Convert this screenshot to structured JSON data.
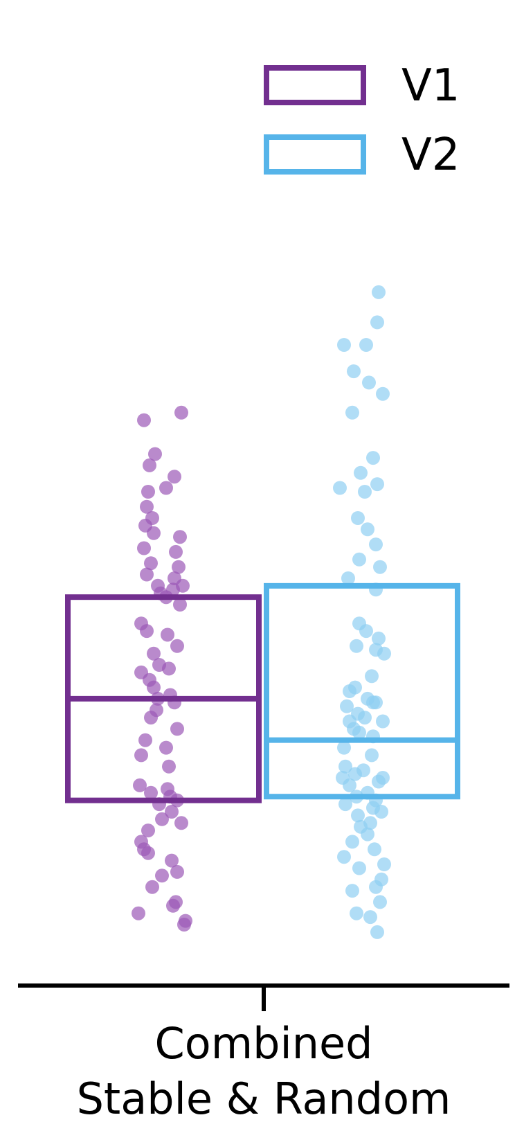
{
  "chart_data": {
    "type": "box",
    "title": "",
    "xlabel": "",
    "ylabel": "",
    "categories": [
      "Combined\nStable & Random"
    ],
    "category_lines": [
      "Combined",
      "Stable & Random"
    ],
    "ylim": [
      0,
      100
    ],
    "legend": {
      "placement": "top-right"
    },
    "series": [
      {
        "name": "V1",
        "color": "#722f8f",
        "point_color": "#9b59b6",
        "box": {
          "q1": 16.5,
          "median": 30.0,
          "q3": 43.5
        },
        "points": [
          [
            -0.14,
            67.0
          ],
          [
            0.13,
            68.0
          ],
          [
            -0.06,
            62.5
          ],
          [
            -0.1,
            61.0
          ],
          [
            0.08,
            59.5
          ],
          [
            0.02,
            58.0
          ],
          [
            -0.11,
            57.5
          ],
          [
            -0.12,
            55.5
          ],
          [
            -0.08,
            54.0
          ],
          [
            -0.13,
            53.0
          ],
          [
            -0.07,
            52.0
          ],
          [
            0.12,
            51.5
          ],
          [
            -0.14,
            50.0
          ],
          [
            0.09,
            49.5
          ],
          [
            -0.09,
            48.0
          ],
          [
            0.11,
            47.5
          ],
          [
            -0.12,
            46.5
          ],
          [
            0.08,
            46.0
          ],
          [
            -0.04,
            45.0
          ],
          [
            0.14,
            45.0
          ],
          [
            0.07,
            44.5
          ],
          [
            -0.02,
            44.0
          ],
          [
            0.02,
            43.5
          ],
          [
            0.12,
            42.5
          ],
          [
            -0.16,
            40.0
          ],
          [
            -0.12,
            39.0
          ],
          [
            0.03,
            38.5
          ],
          [
            0.1,
            37.0
          ],
          [
            -0.07,
            36.0
          ],
          [
            -0.03,
            34.5
          ],
          [
            0.04,
            34.0
          ],
          [
            -0.16,
            33.5
          ],
          [
            -0.1,
            32.5
          ],
          [
            -0.07,
            31.5
          ],
          [
            0.05,
            30.5
          ],
          [
            -0.04,
            30.0
          ],
          [
            0.08,
            29.5
          ],
          [
            -0.05,
            28.5
          ],
          [
            -0.09,
            27.5
          ],
          [
            0.1,
            26.0
          ],
          [
            -0.13,
            24.5
          ],
          [
            0.02,
            23.5
          ],
          [
            -0.16,
            22.5
          ],
          [
            0.04,
            21.0
          ],
          [
            -0.17,
            18.5
          ],
          [
            0.03,
            18.0
          ],
          [
            -0.09,
            17.5
          ],
          [
            0.05,
            17.0
          ],
          [
            0.1,
            16.5
          ],
          [
            -0.03,
            16.0
          ],
          [
            0.06,
            15.0
          ],
          [
            -0.01,
            14.0
          ],
          [
            0.13,
            13.5
          ],
          [
            -0.11,
            12.5
          ],
          [
            -0.16,
            11.0
          ],
          [
            -0.14,
            10.0
          ],
          [
            -0.11,
            9.5
          ],
          [
            0.06,
            8.5
          ],
          [
            0.1,
            7.0
          ],
          [
            -0.01,
            6.5
          ],
          [
            -0.08,
            5.0
          ],
          [
            0.09,
            3.0
          ],
          [
            0.07,
            2.5
          ],
          [
            -0.18,
            1.5
          ],
          [
            0.16,
            0.5
          ],
          [
            0.15,
            0.0
          ]
        ]
      },
      {
        "name": "V2",
        "color": "#56b4e9",
        "point_color": "#8ecff2",
        "box": {
          "q1": 17.0,
          "median": 24.5,
          "q3": 45.0
        },
        "points": [
          [
            0.12,
            84.0
          ],
          [
            0.11,
            80.0
          ],
          [
            -0.13,
            77.0
          ],
          [
            0.03,
            77.0
          ],
          [
            -0.06,
            73.5
          ],
          [
            0.05,
            72.0
          ],
          [
            0.15,
            70.5
          ],
          [
            -0.07,
            68.0
          ],
          [
            0.08,
            62.0
          ],
          [
            -0.01,
            60.0
          ],
          [
            0.11,
            58.5
          ],
          [
            -0.16,
            58.0
          ],
          [
            0.02,
            57.5
          ],
          [
            -0.03,
            54.0
          ],
          [
            0.04,
            52.5
          ],
          [
            0.1,
            50.5
          ],
          [
            -0.02,
            48.5
          ],
          [
            0.13,
            47.5
          ],
          [
            -0.1,
            46.0
          ],
          [
            0.1,
            44.5
          ],
          [
            -0.02,
            40.0
          ],
          [
            0.03,
            39.0
          ],
          [
            0.12,
            38.0
          ],
          [
            -0.04,
            37.0
          ],
          [
            0.1,
            36.5
          ],
          [
            0.16,
            36.0
          ],
          [
            0.07,
            33.0
          ],
          [
            -0.05,
            31.5
          ],
          [
            -0.09,
            31.0
          ],
          [
            0.04,
            30.0
          ],
          [
            0.1,
            29.5
          ],
          [
            -0.11,
            29.0
          ],
          [
            0.08,
            29.5
          ],
          [
            -0.03,
            28.0
          ],
          [
            0.02,
            27.5
          ],
          [
            -0.09,
            27.0
          ],
          [
            0.15,
            27.0
          ],
          [
            -0.06,
            26.0
          ],
          [
            -0.02,
            25.5
          ],
          [
            0.08,
            25.0
          ],
          [
            -0.13,
            23.5
          ],
          [
            0.07,
            22.5
          ],
          [
            -0.12,
            21.0
          ],
          [
            0.01,
            20.5
          ],
          [
            -0.05,
            20.0
          ],
          [
            0.15,
            19.5
          ],
          [
            -0.14,
            19.5
          ],
          [
            0.12,
            19.0
          ],
          [
            -0.09,
            18.5
          ],
          [
            0.04,
            17.5
          ],
          [
            -0.04,
            17.0
          ],
          [
            0.1,
            16.5
          ],
          [
            -0.12,
            16.0
          ],
          [
            0.08,
            15.5
          ],
          [
            0.14,
            15.0
          ],
          [
            -0.03,
            14.5
          ],
          [
            0.06,
            13.5
          ],
          [
            -0.01,
            13.0
          ],
          [
            0.04,
            12.0
          ],
          [
            -0.07,
            11.0
          ],
          [
            0.09,
            10.0
          ],
          [
            -0.13,
            9.0
          ],
          [
            0.16,
            8.0
          ],
          [
            -0.02,
            7.5
          ],
          [
            0.14,
            6.0
          ],
          [
            0.1,
            5.0
          ],
          [
            -0.07,
            4.5
          ],
          [
            0.13,
            3.0
          ],
          [
            -0.04,
            1.5
          ],
          [
            0.06,
            1.0
          ],
          [
            0.11,
            -1.0
          ]
        ]
      }
    ]
  }
}
